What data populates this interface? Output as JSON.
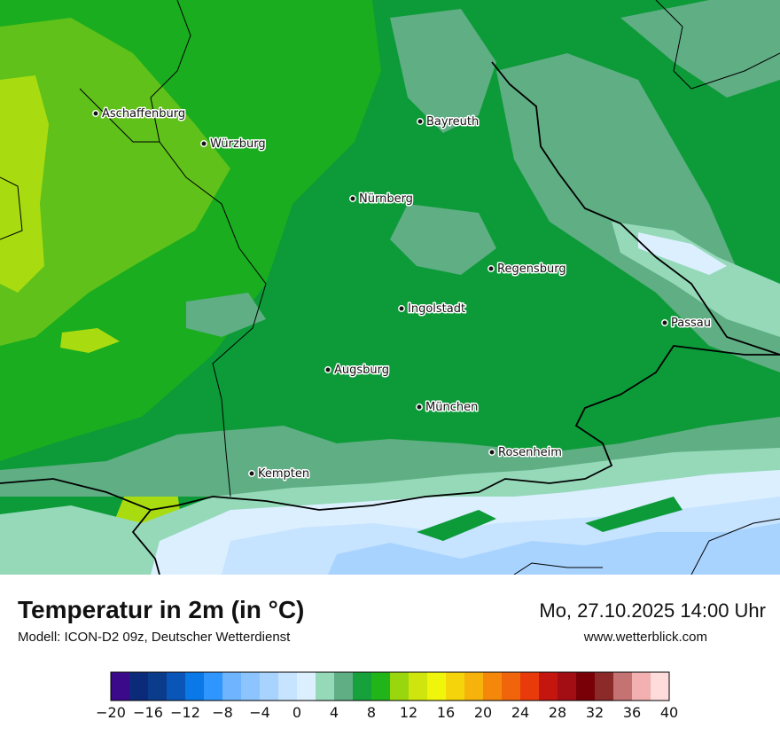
{
  "title": "Temperatur in 2m (in °C)",
  "subtitle": "Modell: ICON-D2 09z, Deutscher Wetterdienst",
  "datetime": "Mo, 27.10.2025 14:00 Uhr",
  "website": "www.wetterblick.com",
  "cities": [
    {
      "name": "Aschaffenburg",
      "id": "aschaffenburg"
    },
    {
      "name": "Würzburg",
      "id": "wuerzburg"
    },
    {
      "name": "Bayreuth",
      "id": "bayreuth"
    },
    {
      "name": "Nürnberg",
      "id": "nuernberg"
    },
    {
      "name": "Regensburg",
      "id": "regensburg"
    },
    {
      "name": "Ingolstadt",
      "id": "ingolstadt"
    },
    {
      "name": "Passau",
      "id": "passau"
    },
    {
      "name": "Augsburg",
      "id": "augsburg"
    },
    {
      "name": "München",
      "id": "muenchen"
    },
    {
      "name": "Rosenheim",
      "id": "rosenheim"
    },
    {
      "name": "Kempten",
      "id": "kempten"
    }
  ],
  "colorscale": {
    "colors": [
      "#3b0a8a",
      "#0b2a7a",
      "#0b3c8c",
      "#0a55b8",
      "#0a78e6",
      "#2f95ff",
      "#6fb4ff",
      "#8cc4ff",
      "#a9d3ff",
      "#c6e3ff",
      "#dcefff",
      "#95d9b9",
      "#5fae84",
      "#16a13a",
      "#22b51a",
      "#9ad60e",
      "#cfe60e",
      "#f0f50c",
      "#f5d40b",
      "#f5b30b",
      "#f5880b",
      "#f0650b",
      "#e83a0b",
      "#c4150f",
      "#a30e14",
      "#7a0008",
      "#8c2a2a",
      "#c47272",
      "#f2b0b0",
      "#ffdcdc"
    ],
    "tick_labels": [
      "−20",
      "−16",
      "−12",
      "−8",
      "−4",
      "0",
      "4",
      "8",
      "12",
      "16",
      "20",
      "24",
      "28",
      "32",
      "36",
      "40"
    ]
  },
  "map_colors": {
    "green_dark": "#0c9b38",
    "green": "#19ad1f",
    "green_light": "#5fc11a",
    "yellow_green": "#a8dc10",
    "teal": "#5fae84",
    "mint": "#95d9b9",
    "ice": "#dcefff",
    "ice2": "#c6e3ff",
    "ice3": "#a9d3ff"
  }
}
